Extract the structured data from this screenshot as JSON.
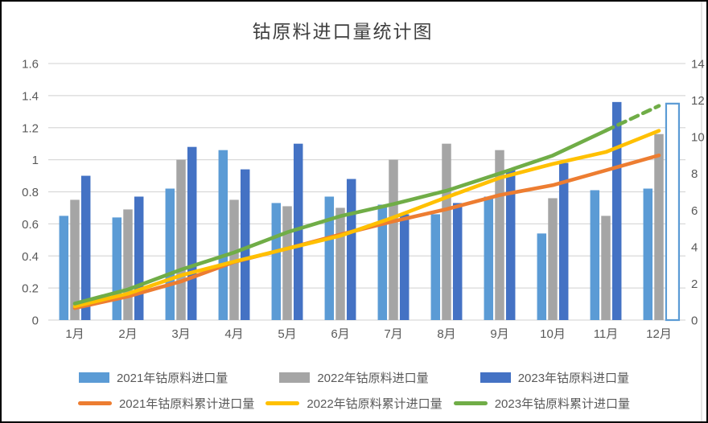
{
  "title": "钴原料进口量统计图",
  "colors": {
    "bar_2021": "#5B9BD5",
    "bar_2022": "#A5A5A5",
    "bar_2023": "#4472C4",
    "line_2021": "#ED7D31",
    "line_2022": "#FFC000",
    "line_2023": "#70AD47",
    "gridline": "#D9D9D9",
    "axis_text": "#595959",
    "title_text": "#3F3F3F",
    "forecast_bar_outline": "#5B9BD5",
    "forecast_bar_fill": "#FFFFFF"
  },
  "chart_data": {
    "type": "bar",
    "subtype": "clustered-bars-with-cumulative-lines",
    "title": "钴原料进口量统计图",
    "xlabel": "",
    "ylabel_left": "",
    "ylabel_right": "",
    "grid": true,
    "legend_position": "bottom",
    "categories": [
      "1月",
      "2月",
      "3月",
      "4月",
      "5月",
      "6月",
      "7月",
      "8月",
      "9月",
      "10月",
      "11月",
      "12月"
    ],
    "left_axis": {
      "min": 0,
      "max": 1.6,
      "step": 0.2,
      "ticks": [
        "1.6",
        "1.4",
        "1.2",
        "1",
        "0.8",
        "0.6",
        "0.4",
        "0.2",
        "0"
      ]
    },
    "right_axis": {
      "min": 0,
      "max": 14,
      "step": 2,
      "ticks": [
        "14",
        "12",
        "10",
        "8",
        "6",
        "4",
        "2",
        "0"
      ]
    },
    "bar_series": [
      {
        "name": "2021年钴原料进口量",
        "axis": "left",
        "color": "#5B9BD5",
        "values": [
          0.65,
          0.64,
          0.82,
          1.06,
          0.73,
          0.77,
          0.72,
          0.66,
          0.77,
          0.54,
          0.81,
          0.82
        ]
      },
      {
        "name": "2022年钴原料进口量",
        "axis": "left",
        "color": "#A5A5A5",
        "values": [
          0.75,
          0.69,
          1.0,
          0.75,
          0.71,
          0.7,
          1.0,
          1.1,
          1.06,
          0.76,
          0.65,
          1.16
        ]
      },
      {
        "name": "2023年钴原料进口量",
        "axis": "left",
        "color": "#4472C4",
        "values": [
          0.9,
          0.77,
          1.08,
          0.94,
          1.1,
          0.88,
          0.66,
          0.73,
          0.94,
          0.98,
          1.36,
          null
        ]
      }
    ],
    "forecast_bar": {
      "series": "2023年钴原料进口量",
      "category": "12月",
      "value": 1.35,
      "style": "outlined",
      "outline_color": "#5B9BD5",
      "fill": "#FFFFFF"
    },
    "line_series": [
      {
        "name": "2021年钴原料累计进口量",
        "axis": "right",
        "color": "#ED7D31",
        "dashed_from_index": null,
        "values": [
          0.65,
          1.29,
          2.11,
          3.17,
          3.9,
          4.67,
          5.39,
          6.05,
          6.82,
          7.36,
          8.17,
          8.99
        ]
      },
      {
        "name": "2022年钴原料累计进口量",
        "axis": "right",
        "color": "#FFC000",
        "dashed_from_index": null,
        "values": [
          0.75,
          1.44,
          2.44,
          3.19,
          3.9,
          4.6,
          5.6,
          6.7,
          7.76,
          8.52,
          9.17,
          10.33
        ]
      },
      {
        "name": "2023年钴原料累计进口量",
        "axis": "right",
        "color": "#70AD47",
        "dashed_from_index": 10,
        "values": [
          0.9,
          1.67,
          2.75,
          3.69,
          4.79,
          5.67,
          6.33,
          7.06,
          8.0,
          8.98,
          10.34,
          11.69
        ]
      }
    ]
  }
}
